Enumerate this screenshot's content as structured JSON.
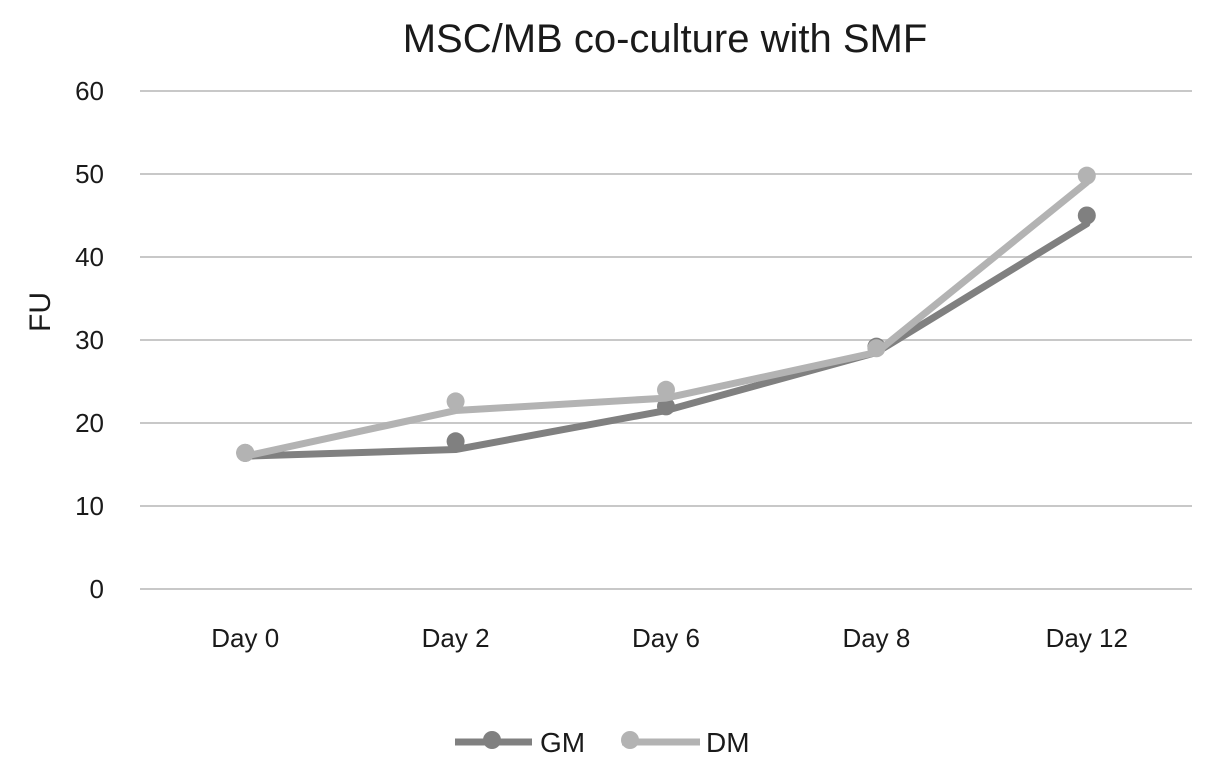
{
  "chart_data": {
    "type": "line",
    "title": "MSC/MB co-culture with SMF",
    "xlabel": "",
    "ylabel": "FU",
    "categories": [
      "Day 0",
      "Day 2",
      "Day 6",
      "Day 8",
      "Day 12"
    ],
    "ylim": [
      0,
      60
    ],
    "yticks": [
      0,
      10,
      20,
      30,
      40,
      50,
      60
    ],
    "grid": true,
    "legend": "bottom",
    "series": [
      {
        "name": "GM",
        "color": "#808080",
        "marker_values": [
          16.4,
          17.8,
          22.0,
          29.2,
          45.0
        ],
        "trend_values": [
          16.0,
          16.8,
          21.5,
          28.5,
          44.0
        ]
      },
      {
        "name": "DM",
        "color": "#b3b3b3",
        "marker_values": [
          16.4,
          22.6,
          24.0,
          29.0,
          49.8
        ],
        "trend_values": [
          16.0,
          21.5,
          23.0,
          28.5,
          49.0
        ]
      }
    ]
  }
}
